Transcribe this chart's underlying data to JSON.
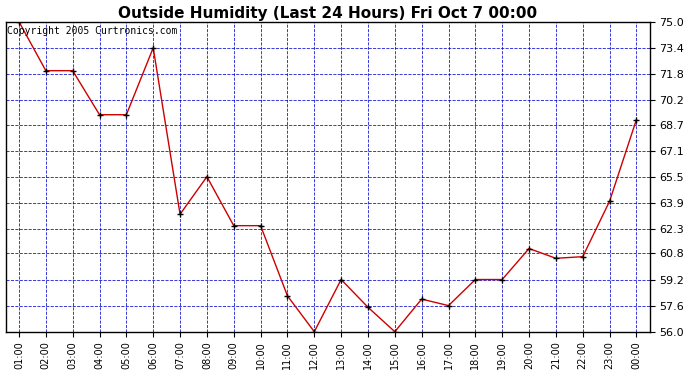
{
  "title": "Outside Humidity (Last 24 Hours) Fri Oct 7 00:00",
  "copyright": "Copyright 2005 Curtronics.com",
  "x_labels": [
    "01:00",
    "02:00",
    "03:00",
    "04:00",
    "05:00",
    "06:00",
    "07:00",
    "08:00",
    "09:00",
    "10:00",
    "11:00",
    "12:00",
    "13:00",
    "14:00",
    "15:00",
    "16:00",
    "17:00",
    "18:00",
    "19:00",
    "20:00",
    "21:00",
    "22:00",
    "23:00",
    "00:00"
  ],
  "x_values": [
    1,
    2,
    3,
    4,
    5,
    6,
    7,
    8,
    9,
    10,
    11,
    12,
    13,
    14,
    15,
    16,
    17,
    18,
    19,
    20,
    21,
    22,
    23,
    24
  ],
  "y_values": [
    75.0,
    72.0,
    72.0,
    69.3,
    69.3,
    73.4,
    63.2,
    65.5,
    62.5,
    62.5,
    58.2,
    56.0,
    59.2,
    57.5,
    56.0,
    58.0,
    57.6,
    59.2,
    59.2,
    61.1,
    60.5,
    60.6,
    64.0,
    69.0
  ],
  "ylim": [
    56.0,
    75.0
  ],
  "yticks": [
    56.0,
    57.6,
    59.2,
    60.8,
    62.3,
    63.9,
    65.5,
    67.1,
    68.7,
    70.2,
    71.8,
    73.4,
    75.0
  ],
  "line_color": "#cc0000",
  "marker_color": "#000000",
  "bg_color": "#ffffff",
  "plot_bg_color": "#ffffff",
  "grid_color": "#0000cc",
  "title_color": "#000000",
  "title_fontsize": 11,
  "copyright_fontsize": 7
}
